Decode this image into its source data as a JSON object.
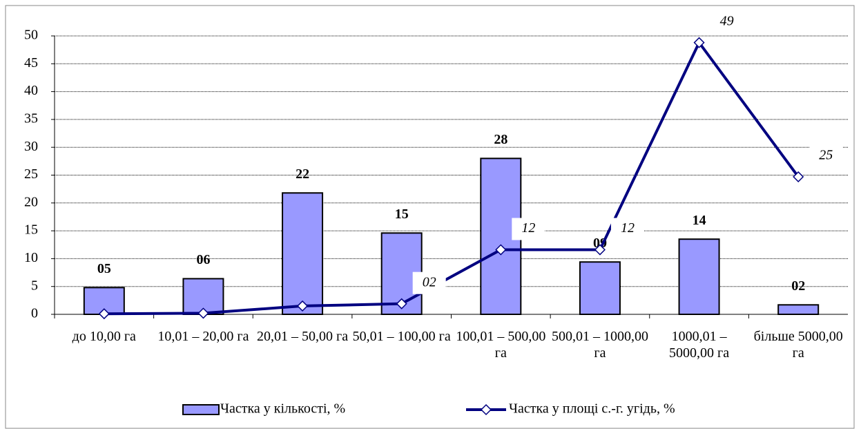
{
  "chart_data": {
    "type": "combo",
    "categories": [
      "до 10,00 га",
      "10,01 – 20,00 га",
      "20,01 – 50,00 га",
      "50,01 – 100,00 га",
      "100,01 – 500,00 га",
      "500,01 – 1000,00 га",
      "1000,01 – 5000,00 га",
      "більше 5000,00 га"
    ],
    "series": [
      {
        "name": "Частка у кількості, %",
        "type": "bar",
        "color": "#9999ff",
        "values": [
          4.8,
          6.4,
          21.8,
          14.6,
          28.0,
          9.4,
          13.5,
          1.7
        ],
        "value_labels": [
          "05",
          "06",
          "22",
          "15",
          "28",
          "09",
          "14",
          "02"
        ]
      },
      {
        "name": "Частка у площі с.-г. угідь, %",
        "type": "line",
        "color": "#000080",
        "values": [
          0.1,
          0.2,
          1.5,
          1.9,
          11.6,
          11.6,
          48.8,
          24.7
        ],
        "value_labels": [
          null,
          null,
          null,
          "02",
          "12",
          "12",
          "49",
          "25"
        ]
      }
    ],
    "ylim": [
      0,
      50
    ],
    "yticks": [
      0,
      5,
      10,
      15,
      20,
      25,
      30,
      35,
      40,
      45,
      50
    ],
    "grid": true
  }
}
